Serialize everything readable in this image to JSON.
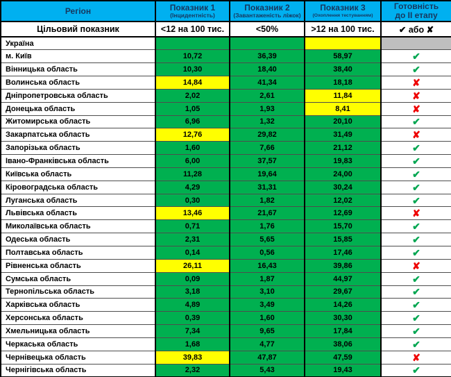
{
  "header": {
    "region_label": "Регіон",
    "indicators": [
      {
        "title": "Показник 1",
        "subtitle": "(Інцидентність)"
      },
      {
        "title": "Показник 2",
        "subtitle": "(Завантаженість ліжок)"
      },
      {
        "title": "Показник 3",
        "subtitle": "(Охоплення тестуванням)"
      }
    ],
    "readiness": {
      "line1": "Готовність",
      "line2": "до ІІ етапу"
    }
  },
  "target": {
    "label": "Цільовий показник",
    "indicator1": "<12 на 100 тис.",
    "indicator2": "<50%",
    "indicator3": ">12 на 100 тис.",
    "readiness": "✔ або ✘"
  },
  "marks": {
    "check": "✔",
    "cross": "✘"
  },
  "colors": {
    "header-bg": "#00b0f0",
    "header-text": "#17375e",
    "green": "#00b050",
    "yellow": "#ffff00",
    "gray": "#bfbfbf",
    "check-green": "#00a651",
    "cross-red": "#ee0000"
  },
  "rows": [
    {
      "region": "Україна",
      "values": [
        {
          "text": "",
          "status": "ok"
        },
        {
          "text": "",
          "status": "ok"
        },
        {
          "text": "",
          "status": "warn"
        }
      ],
      "ready": "none"
    },
    {
      "region": "м. Київ",
      "values": [
        {
          "text": "10,72",
          "status": "ok"
        },
        {
          "text": "36,39",
          "status": "ok"
        },
        {
          "text": "58,97",
          "status": "ok"
        }
      ],
      "ready": "check"
    },
    {
      "region": "Вінницька область",
      "values": [
        {
          "text": "10,30",
          "status": "ok"
        },
        {
          "text": "18,40",
          "status": "ok"
        },
        {
          "text": "38,40",
          "status": "ok"
        }
      ],
      "ready": "check"
    },
    {
      "region": "Волинська область",
      "values": [
        {
          "text": "14,84",
          "status": "warn"
        },
        {
          "text": "41,34",
          "status": "ok"
        },
        {
          "text": "18,18",
          "status": "ok"
        }
      ],
      "ready": "cross"
    },
    {
      "region": "Дніпропетровська область",
      "values": [
        {
          "text": "2,02",
          "status": "ok"
        },
        {
          "text": "2,61",
          "status": "ok"
        },
        {
          "text": "11,84",
          "status": "warn"
        }
      ],
      "ready": "cross"
    },
    {
      "region": "Донецька область",
      "values": [
        {
          "text": "1,05",
          "status": "ok"
        },
        {
          "text": "1,93",
          "status": "ok"
        },
        {
          "text": "8,41",
          "status": "warn"
        }
      ],
      "ready": "cross"
    },
    {
      "region": "Житомирська область",
      "values": [
        {
          "text": "6,96",
          "status": "ok"
        },
        {
          "text": "1,32",
          "status": "ok"
        },
        {
          "text": "20,10",
          "status": "ok"
        }
      ],
      "ready": "check"
    },
    {
      "region": "Закарпатська область",
      "values": [
        {
          "text": "12,76",
          "status": "warn"
        },
        {
          "text": "29,82",
          "status": "ok"
        },
        {
          "text": "31,49",
          "status": "ok"
        }
      ],
      "ready": "cross"
    },
    {
      "region": "Запорізька область",
      "values": [
        {
          "text": "1,60",
          "status": "ok"
        },
        {
          "text": "7,66",
          "status": "ok"
        },
        {
          "text": "21,12",
          "status": "ok"
        }
      ],
      "ready": "check"
    },
    {
      "region": "Івано-Франківська область",
      "values": [
        {
          "text": "6,00",
          "status": "ok"
        },
        {
          "text": "37,57",
          "status": "ok"
        },
        {
          "text": "19,83",
          "status": "ok"
        }
      ],
      "ready": "check"
    },
    {
      "region": "Київська область",
      "values": [
        {
          "text": "11,28",
          "status": "ok"
        },
        {
          "text": "19,64",
          "status": "ok"
        },
        {
          "text": "24,00",
          "status": "ok"
        }
      ],
      "ready": "check"
    },
    {
      "region": "Кіровоградська область",
      "values": [
        {
          "text": "4,29",
          "status": "ok"
        },
        {
          "text": "31,31",
          "status": "ok"
        },
        {
          "text": "30,24",
          "status": "ok"
        }
      ],
      "ready": "check"
    },
    {
      "region": "Луганська область",
      "values": [
        {
          "text": "0,30",
          "status": "ok"
        },
        {
          "text": "1,82",
          "status": "ok"
        },
        {
          "text": "12,02",
          "status": "ok"
        }
      ],
      "ready": "check"
    },
    {
      "region": "Львівська область",
      "values": [
        {
          "text": "13,46",
          "status": "warn"
        },
        {
          "text": "21,67",
          "status": "ok"
        },
        {
          "text": "12,69",
          "status": "ok"
        }
      ],
      "ready": "cross"
    },
    {
      "region": "Миколаївська область",
      "values": [
        {
          "text": "0,71",
          "status": "ok"
        },
        {
          "text": "1,76",
          "status": "ok"
        },
        {
          "text": "15,70",
          "status": "ok"
        }
      ],
      "ready": "check"
    },
    {
      "region": "Одеська область",
      "values": [
        {
          "text": "2,31",
          "status": "ok"
        },
        {
          "text": "5,65",
          "status": "ok"
        },
        {
          "text": "15,85",
          "status": "ok"
        }
      ],
      "ready": "check"
    },
    {
      "region": "Полтавська область",
      "values": [
        {
          "text": "0,14",
          "status": "ok"
        },
        {
          "text": "0,56",
          "status": "ok"
        },
        {
          "text": "17,46",
          "status": "ok"
        }
      ],
      "ready": "check"
    },
    {
      "region": "Рівненська область",
      "values": [
        {
          "text": "26,11",
          "status": "warn"
        },
        {
          "text": "16,43",
          "status": "ok"
        },
        {
          "text": "39,86",
          "status": "ok"
        }
      ],
      "ready": "cross"
    },
    {
      "region": "Сумська область",
      "values": [
        {
          "text": "0,09",
          "status": "ok"
        },
        {
          "text": "1,87",
          "status": "ok"
        },
        {
          "text": "44,97",
          "status": "ok"
        }
      ],
      "ready": "check"
    },
    {
      "region": "Тернопільська область",
      "values": [
        {
          "text": "3,18",
          "status": "ok"
        },
        {
          "text": "3,10",
          "status": "ok"
        },
        {
          "text": "29,67",
          "status": "ok"
        }
      ],
      "ready": "check"
    },
    {
      "region": "Харківська область",
      "values": [
        {
          "text": "4,89",
          "status": "ok"
        },
        {
          "text": "3,49",
          "status": "ok"
        },
        {
          "text": "14,26",
          "status": "ok"
        }
      ],
      "ready": "check"
    },
    {
      "region": "Херсонська область",
      "values": [
        {
          "text": "0,39",
          "status": "ok"
        },
        {
          "text": "1,60",
          "status": "ok"
        },
        {
          "text": "30,30",
          "status": "ok"
        }
      ],
      "ready": "check"
    },
    {
      "region": "Хмельницька область",
      "values": [
        {
          "text": "7,34",
          "status": "ok"
        },
        {
          "text": "9,65",
          "status": "ok"
        },
        {
          "text": "17,84",
          "status": "ok"
        }
      ],
      "ready": "check"
    },
    {
      "region": "Черкаська область",
      "values": [
        {
          "text": "1,68",
          "status": "ok"
        },
        {
          "text": "4,77",
          "status": "ok"
        },
        {
          "text": "38,06",
          "status": "ok"
        }
      ],
      "ready": "check"
    },
    {
      "region": "Чернівецька область",
      "values": [
        {
          "text": "39,83",
          "status": "warn"
        },
        {
          "text": "47,87",
          "status": "ok"
        },
        {
          "text": "47,59",
          "status": "ok"
        }
      ],
      "ready": "cross"
    },
    {
      "region": "Чернігівська область",
      "values": [
        {
          "text": "2,32",
          "status": "ok"
        },
        {
          "text": "5,43",
          "status": "ok"
        },
        {
          "text": "19,43",
          "status": "ok"
        }
      ],
      "ready": "check"
    }
  ]
}
